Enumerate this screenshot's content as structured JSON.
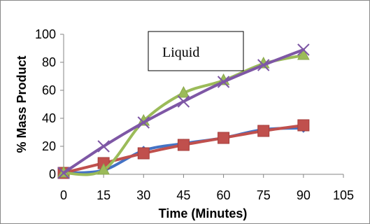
{
  "chart_data": {
    "type": "line",
    "title": "",
    "xlabel": "Time (Minutes)",
    "ylabel": "% Mass Product",
    "xlim": [
      0,
      105
    ],
    "ylim": [
      0,
      100
    ],
    "xticks": [
      0,
      15,
      30,
      45,
      60,
      75,
      90,
      105
    ],
    "yticks": [
      0,
      20,
      40,
      60,
      80,
      100
    ],
    "x": [
      0,
      15,
      30,
      45,
      60,
      75,
      90
    ],
    "legend": {
      "placement": "top-center",
      "text": "Liquid"
    },
    "grid": false,
    "series": [
      {
        "color": "#4472C4",
        "marker": "diamond",
        "values": [
          1,
          3,
          17,
          22,
          26,
          32,
          33
        ]
      },
      {
        "color": "#C0504D",
        "marker": "square",
        "values": [
          1,
          8,
          15,
          21,
          26,
          31,
          35
        ]
      },
      {
        "color": "#9BBB59",
        "marker": "triangle",
        "values": [
          1,
          3,
          38,
          58,
          67,
          79,
          85
        ]
      },
      {
        "color": "#7E57A5",
        "marker": "x",
        "values": [
          1,
          20,
          37,
          52,
          66,
          78,
          89
        ]
      }
    ]
  }
}
